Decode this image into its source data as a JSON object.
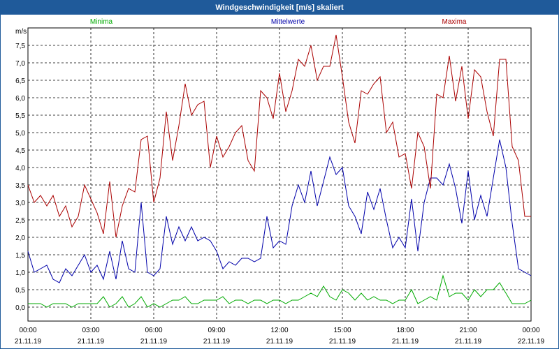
{
  "window": {
    "title": "Windgeschwindigkeit [m/s] skaliert"
  },
  "colors": {
    "minima": "#00aa00",
    "mittel": "#0000aa",
    "maxima": "#aa0000",
    "title_bg": "#1f5a9a"
  },
  "chart_data": {
    "type": "line",
    "title": "Windgeschwindigkeit [m/s] skaliert",
    "ylabel": "m/s",
    "ylim": [
      -0.4,
      8.0
    ],
    "xlim": [
      0,
      24
    ],
    "grid": true,
    "legend_placement": "top",
    "y_ticks": [
      "0,0",
      "0,5",
      "1,0",
      "1,5",
      "2,0",
      "2,5",
      "3,0",
      "3,5",
      "4,0",
      "4,5",
      "5,0",
      "5,5",
      "6,0",
      "6,5",
      "7,0",
      "7,5"
    ],
    "x_ticks": [
      {
        "time": "00:00",
        "date": "21.11.19"
      },
      {
        "time": "03:00",
        "date": "21.11.19"
      },
      {
        "time": "06:00",
        "date": "21.11.19"
      },
      {
        "time": "09:00",
        "date": "21.11.19"
      },
      {
        "time": "12:00",
        "date": "21.11.19"
      },
      {
        "time": "15:00",
        "date": "21.11.19"
      },
      {
        "time": "18:00",
        "date": "21.11.19"
      },
      {
        "time": "21:00",
        "date": "21.11.19"
      },
      {
        "time": "00:00",
        "date": "22.11.19"
      }
    ],
    "series": [
      {
        "name": "Minima",
        "points": [
          [
            0,
            0.1
          ],
          [
            0.3,
            0.1
          ],
          [
            0.6,
            0.1
          ],
          [
            0.9,
            0.0
          ],
          [
            1.2,
            0.1
          ],
          [
            1.5,
            0.1
          ],
          [
            1.8,
            0.1
          ],
          [
            2.1,
            0.0
          ],
          [
            2.4,
            0.1
          ],
          [
            2.7,
            0.1
          ],
          [
            3.0,
            0.1
          ],
          [
            3.3,
            0.1
          ],
          [
            3.6,
            0.3
          ],
          [
            3.9,
            0.0
          ],
          [
            4.2,
            0.1
          ],
          [
            4.5,
            0.3
          ],
          [
            4.8,
            0.0
          ],
          [
            5.1,
            0.1
          ],
          [
            5.4,
            0.3
          ],
          [
            5.7,
            0.0
          ],
          [
            6.0,
            0.1
          ],
          [
            6.3,
            0.0
          ],
          [
            6.6,
            0.1
          ],
          [
            6.9,
            0.2
          ],
          [
            7.2,
            0.2
          ],
          [
            7.5,
            0.3
          ],
          [
            7.8,
            0.1
          ],
          [
            8.1,
            0.1
          ],
          [
            8.4,
            0.2
          ],
          [
            8.7,
            0.2
          ],
          [
            9.0,
            0.2
          ],
          [
            9.3,
            0.3
          ],
          [
            9.6,
            0.1
          ],
          [
            9.9,
            0.2
          ],
          [
            10.2,
            0.2
          ],
          [
            10.5,
            0.1
          ],
          [
            10.8,
            0.2
          ],
          [
            11.1,
            0.2
          ],
          [
            11.4,
            0.1
          ],
          [
            11.7,
            0.2
          ],
          [
            12.0,
            0.2
          ],
          [
            12.3,
            0.1
          ],
          [
            12.6,
            0.2
          ],
          [
            12.9,
            0.2
          ],
          [
            13.2,
            0.3
          ],
          [
            13.5,
            0.4
          ],
          [
            13.8,
            0.3
          ],
          [
            14.1,
            0.6
          ],
          [
            14.4,
            0.3
          ],
          [
            14.7,
            0.2
          ],
          [
            15.0,
            0.5
          ],
          [
            15.3,
            0.4
          ],
          [
            15.6,
            0.2
          ],
          [
            15.9,
            0.4
          ],
          [
            16.2,
            0.2
          ],
          [
            16.5,
            0.3
          ],
          [
            16.8,
            0.2
          ],
          [
            17.1,
            0.2
          ],
          [
            17.4,
            0.1
          ],
          [
            17.7,
            0.2
          ],
          [
            18.0,
            0.2
          ],
          [
            18.3,
            0.5
          ],
          [
            18.6,
            0.1
          ],
          [
            18.9,
            0.2
          ],
          [
            19.2,
            0.3
          ],
          [
            19.5,
            0.2
          ],
          [
            19.8,
            0.9
          ],
          [
            20.1,
            0.3
          ],
          [
            20.4,
            0.4
          ],
          [
            20.7,
            0.4
          ],
          [
            21.0,
            0.2
          ],
          [
            21.3,
            0.5
          ],
          [
            21.6,
            0.3
          ],
          [
            21.9,
            0.5
          ],
          [
            22.2,
            0.5
          ],
          [
            22.5,
            0.7
          ],
          [
            22.8,
            0.4
          ],
          [
            23.1,
            0.1
          ],
          [
            23.4,
            0.1
          ],
          [
            23.7,
            0.1
          ],
          [
            24.0,
            0.2
          ]
        ]
      },
      {
        "name": "Mittelwerte",
        "points": [
          [
            0,
            1.6
          ],
          [
            0.3,
            1.0
          ],
          [
            0.6,
            1.1
          ],
          [
            0.9,
            1.2
          ],
          [
            1.2,
            0.8
          ],
          [
            1.5,
            0.7
          ],
          [
            1.8,
            1.1
          ],
          [
            2.1,
            0.9
          ],
          [
            2.4,
            1.2
          ],
          [
            2.7,
            1.5
          ],
          [
            3.0,
            1.0
          ],
          [
            3.3,
            1.2
          ],
          [
            3.6,
            0.8
          ],
          [
            3.9,
            1.6
          ],
          [
            4.2,
            0.8
          ],
          [
            4.5,
            1.9
          ],
          [
            4.8,
            1.1
          ],
          [
            5.1,
            1.0
          ],
          [
            5.4,
            3.0
          ],
          [
            5.7,
            1.0
          ],
          [
            6.0,
            0.9
          ],
          [
            6.3,
            1.1
          ],
          [
            6.6,
            2.6
          ],
          [
            6.9,
            1.8
          ],
          [
            7.2,
            2.3
          ],
          [
            7.5,
            1.9
          ],
          [
            7.8,
            2.3
          ],
          [
            8.1,
            1.9
          ],
          [
            8.4,
            2.0
          ],
          [
            8.7,
            1.9
          ],
          [
            9.0,
            1.6
          ],
          [
            9.3,
            1.1
          ],
          [
            9.6,
            1.3
          ],
          [
            9.9,
            1.2
          ],
          [
            10.2,
            1.4
          ],
          [
            10.5,
            1.4
          ],
          [
            10.8,
            1.3
          ],
          [
            11.1,
            1.4
          ],
          [
            11.4,
            2.6
          ],
          [
            11.7,
            1.7
          ],
          [
            12.0,
            1.9
          ],
          [
            12.3,
            1.8
          ],
          [
            12.6,
            2.9
          ],
          [
            12.9,
            3.5
          ],
          [
            13.2,
            3.0
          ],
          [
            13.5,
            3.9
          ],
          [
            13.8,
            2.9
          ],
          [
            14.1,
            3.6
          ],
          [
            14.4,
            4.3
          ],
          [
            14.7,
            3.8
          ],
          [
            15.0,
            4.0
          ],
          [
            15.3,
            2.9
          ],
          [
            15.6,
            2.6
          ],
          [
            15.9,
            2.1
          ],
          [
            16.2,
            3.3
          ],
          [
            16.5,
            2.8
          ],
          [
            16.8,
            3.4
          ],
          [
            17.1,
            2.5
          ],
          [
            17.4,
            1.7
          ],
          [
            17.7,
            2.0
          ],
          [
            18.0,
            1.7
          ],
          [
            18.3,
            3.1
          ],
          [
            18.6,
            1.6
          ],
          [
            18.9,
            3.0
          ],
          [
            19.2,
            3.7
          ],
          [
            19.5,
            3.7
          ],
          [
            19.8,
            3.5
          ],
          [
            20.1,
            4.1
          ],
          [
            20.4,
            3.4
          ],
          [
            20.7,
            2.4
          ],
          [
            21.0,
            3.9
          ],
          [
            21.3,
            2.5
          ],
          [
            21.6,
            3.2
          ],
          [
            21.9,
            2.6
          ],
          [
            22.2,
            3.7
          ],
          [
            22.5,
            4.8
          ],
          [
            22.8,
            4.0
          ],
          [
            23.1,
            2.4
          ],
          [
            23.4,
            1.1
          ],
          [
            23.7,
            1.0
          ],
          [
            24.0,
            0.9
          ]
        ]
      },
      {
        "name": "Maxima",
        "points": [
          [
            0,
            3.5
          ],
          [
            0.3,
            3.0
          ],
          [
            0.6,
            3.2
          ],
          [
            0.9,
            2.9
          ],
          [
            1.2,
            3.2
          ],
          [
            1.5,
            2.6
          ],
          [
            1.8,
            2.9
          ],
          [
            2.1,
            2.3
          ],
          [
            2.4,
            2.6
          ],
          [
            2.7,
            3.5
          ],
          [
            3.0,
            3.1
          ],
          [
            3.3,
            2.7
          ],
          [
            3.6,
            2.1
          ],
          [
            3.9,
            3.6
          ],
          [
            4.2,
            2.0
          ],
          [
            4.5,
            2.9
          ],
          [
            4.8,
            3.4
          ],
          [
            5.1,
            3.3
          ],
          [
            5.4,
            4.8
          ],
          [
            5.7,
            4.9
          ],
          [
            6.0,
            3.0
          ],
          [
            6.3,
            3.7
          ],
          [
            6.6,
            5.6
          ],
          [
            6.9,
            4.2
          ],
          [
            7.2,
            5.2
          ],
          [
            7.5,
            6.4
          ],
          [
            7.8,
            5.5
          ],
          [
            8.1,
            5.8
          ],
          [
            8.4,
            5.9
          ],
          [
            8.7,
            4.0
          ],
          [
            9.0,
            4.9
          ],
          [
            9.3,
            4.3
          ],
          [
            9.6,
            4.6
          ],
          [
            9.9,
            5.0
          ],
          [
            10.2,
            5.2
          ],
          [
            10.5,
            4.2
          ],
          [
            10.8,
            3.9
          ],
          [
            11.1,
            6.2
          ],
          [
            11.4,
            6.0
          ],
          [
            11.7,
            5.4
          ],
          [
            12.0,
            6.7
          ],
          [
            12.3,
            5.6
          ],
          [
            12.6,
            6.2
          ],
          [
            12.9,
            7.1
          ],
          [
            13.2,
            6.9
          ],
          [
            13.5,
            7.5
          ],
          [
            13.8,
            6.5
          ],
          [
            14.1,
            6.9
          ],
          [
            14.4,
            6.9
          ],
          [
            14.7,
            7.8
          ],
          [
            15.0,
            6.6
          ],
          [
            15.3,
            5.3
          ],
          [
            15.6,
            4.7
          ],
          [
            15.9,
            6.2
          ],
          [
            16.2,
            6.1
          ],
          [
            16.5,
            6.4
          ],
          [
            16.8,
            6.6
          ],
          [
            17.1,
            5.0
          ],
          [
            17.4,
            5.3
          ],
          [
            17.7,
            4.3
          ],
          [
            18.0,
            4.4
          ],
          [
            18.3,
            3.4
          ],
          [
            18.6,
            5.0
          ],
          [
            18.9,
            4.6
          ],
          [
            19.2,
            3.4
          ],
          [
            19.5,
            6.1
          ],
          [
            19.8,
            6.0
          ],
          [
            20.1,
            7.2
          ],
          [
            20.4,
            5.9
          ],
          [
            20.7,
            6.9
          ],
          [
            21.0,
            5.4
          ],
          [
            21.3,
            6.8
          ],
          [
            21.6,
            6.6
          ],
          [
            21.9,
            5.6
          ],
          [
            22.2,
            4.9
          ],
          [
            22.5,
            7.1
          ],
          [
            22.8,
            7.1
          ],
          [
            23.1,
            4.6
          ],
          [
            23.4,
            4.2
          ],
          [
            23.7,
            2.6
          ],
          [
            24.0,
            2.6
          ]
        ]
      }
    ]
  }
}
